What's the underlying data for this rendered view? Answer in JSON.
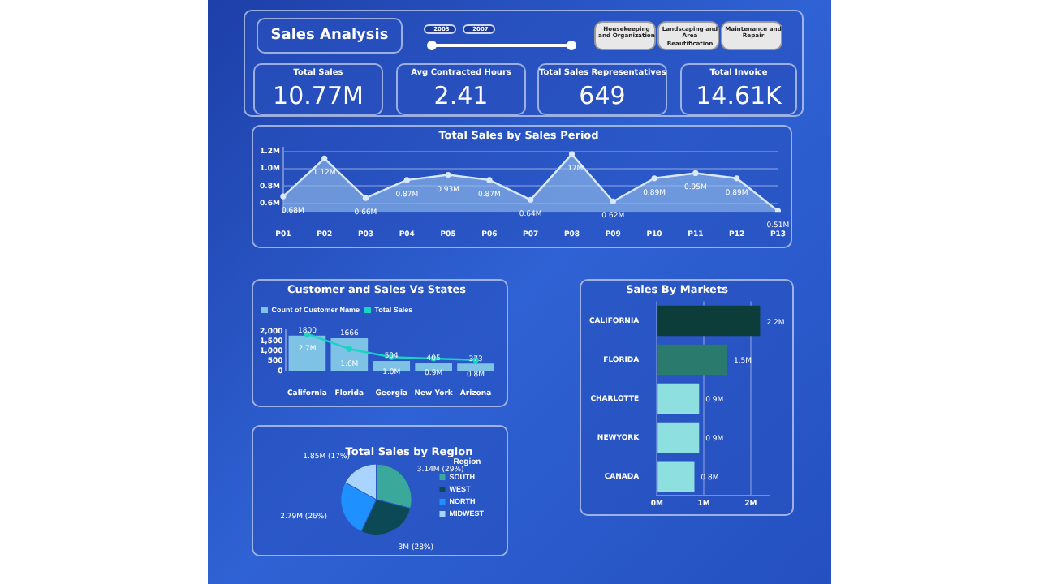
{
  "chart_data": [
    {
      "type": "other",
      "title": "Sales Analysis",
      "annotations": [
        "2003",
        "2007",
        "Housekeeping and Organization",
        "Landscaping and Area Beautification",
        "Maintenance and Repair",
        "Total Sales",
        "10.77M",
        "Avg Contracted Hours",
        "2.41",
        "Total Sales Representatives",
        "649",
        "Total Invoice",
        "14.61K"
      ]
    },
    {
      "type": "area",
      "title": "Total Sales by Sales Period",
      "categories": [
        "P01",
        "P02",
        "P03",
        "P04",
        "P05",
        "P06",
        "P07",
        "P08",
        "P09",
        "P10",
        "P11",
        "P12",
        "P13"
      ],
      "series": [
        {
          "color": "#8fb8e8",
          "values": [
            0.68,
            1.12,
            0.66,
            0.87,
            0.93,
            0.87,
            0.64,
            1.17,
            0.62,
            0.89,
            0.95,
            0.89,
            0.51
          ],
          "value_labels": [
            "0.68M",
            "1.12M",
            "0.66M",
            "0.87M",
            "0.93M",
            "0.87M",
            "0.64M",
            "1.17M",
            "0.62M",
            "0.89M",
            "0.95M",
            "0.89M",
            "0.51M"
          ]
        }
      ],
      "ylim": [
        0.5,
        1.25
      ],
      "yticks": [
        {
          "value": 0.6,
          "label": "0.6M"
        },
        {
          "value": 0.8,
          "label": "0.8M"
        },
        {
          "value": 1.0,
          "label": "1.0M"
        },
        {
          "value": 1.2,
          "label": "1.2M"
        }
      ],
      "grid": "y",
      "marker": "circle"
    },
    {
      "type": "bar",
      "title": "Customer and Sales Vs States",
      "categories": [
        "California",
        "Florida",
        "Georgia",
        "New York",
        "Arizona"
      ],
      "series": [
        {
          "name": "Count of Customer Name",
          "type": "bar",
          "color": "#7ec3e6",
          "values": [
            1800,
            1666,
            504,
            405,
            373
          ],
          "value_labels": [
            "1800",
            "1666",
            "504",
            "405",
            "373"
          ]
        },
        {
          "name": "Total Sales",
          "type": "line",
          "axis": "y2",
          "color": "#19d3c5",
          "values": [
            2.7,
            1.6,
            1.0,
            0.9,
            0.8
          ],
          "value_labels": [
            "2.7M",
            "1.6M",
            "1.0M",
            "0.9M",
            "0.8M"
          ]
        }
      ],
      "ylim": [
        0,
        2100
      ],
      "yticks": [
        0,
        {
          "value": 500,
          "label": "500"
        },
        {
          "value": 1000,
          "label": "1,000"
        },
        {
          "value": 1500,
          "label": "1,500"
        },
        {
          "value": 2000,
          "label": "2,000"
        }
      ],
      "y2lim": [
        0,
        3.0
      ],
      "legend": "top left",
      "marker": "circle",
      "grid": false
    },
    {
      "type": "bar",
      "orientation": "horizontal",
      "title": "Sales By Markets",
      "categories": [
        "CALIFORNIA",
        "FLORIDA",
        "CHARLOTTE",
        "NEWYORK",
        "CANADA"
      ],
      "values": [
        2.2,
        1.5,
        0.9,
        0.9,
        0.8
      ],
      "colors": [
        "#0d3d3a",
        "#2a7a6e",
        "#8ee0e0",
        "#8ee0e0",
        "#8ee0e0"
      ],
      "value_labels": [
        "2.2M",
        "1.5M",
        "0.9M",
        "0.9M",
        "0.8M"
      ],
      "xlim": [
        0,
        2.4
      ],
      "xticks": [
        {
          "value": 0,
          "label": "0M"
        },
        {
          "value": 1,
          "label": "1M"
        },
        {
          "value": 2,
          "label": "2M"
        }
      ],
      "grid": "x"
    },
    {
      "type": "pie",
      "title": "Total Sales by Region",
      "legend_title": "Region",
      "categories": [
        "SOUTH",
        "WEST",
        "NORTH",
        "MIDWEST"
      ],
      "values": [
        29,
        28,
        26,
        17
      ],
      "value_labels": [
        "3.14M (29%)",
        "3M (28%)",
        "2.79M (26%)",
        "1.85M (17%)"
      ],
      "colors": [
        "#3aa89a",
        "#0b4a55",
        "#1e90ff",
        "#a9d4ff"
      ],
      "legend": "right"
    }
  ]
}
